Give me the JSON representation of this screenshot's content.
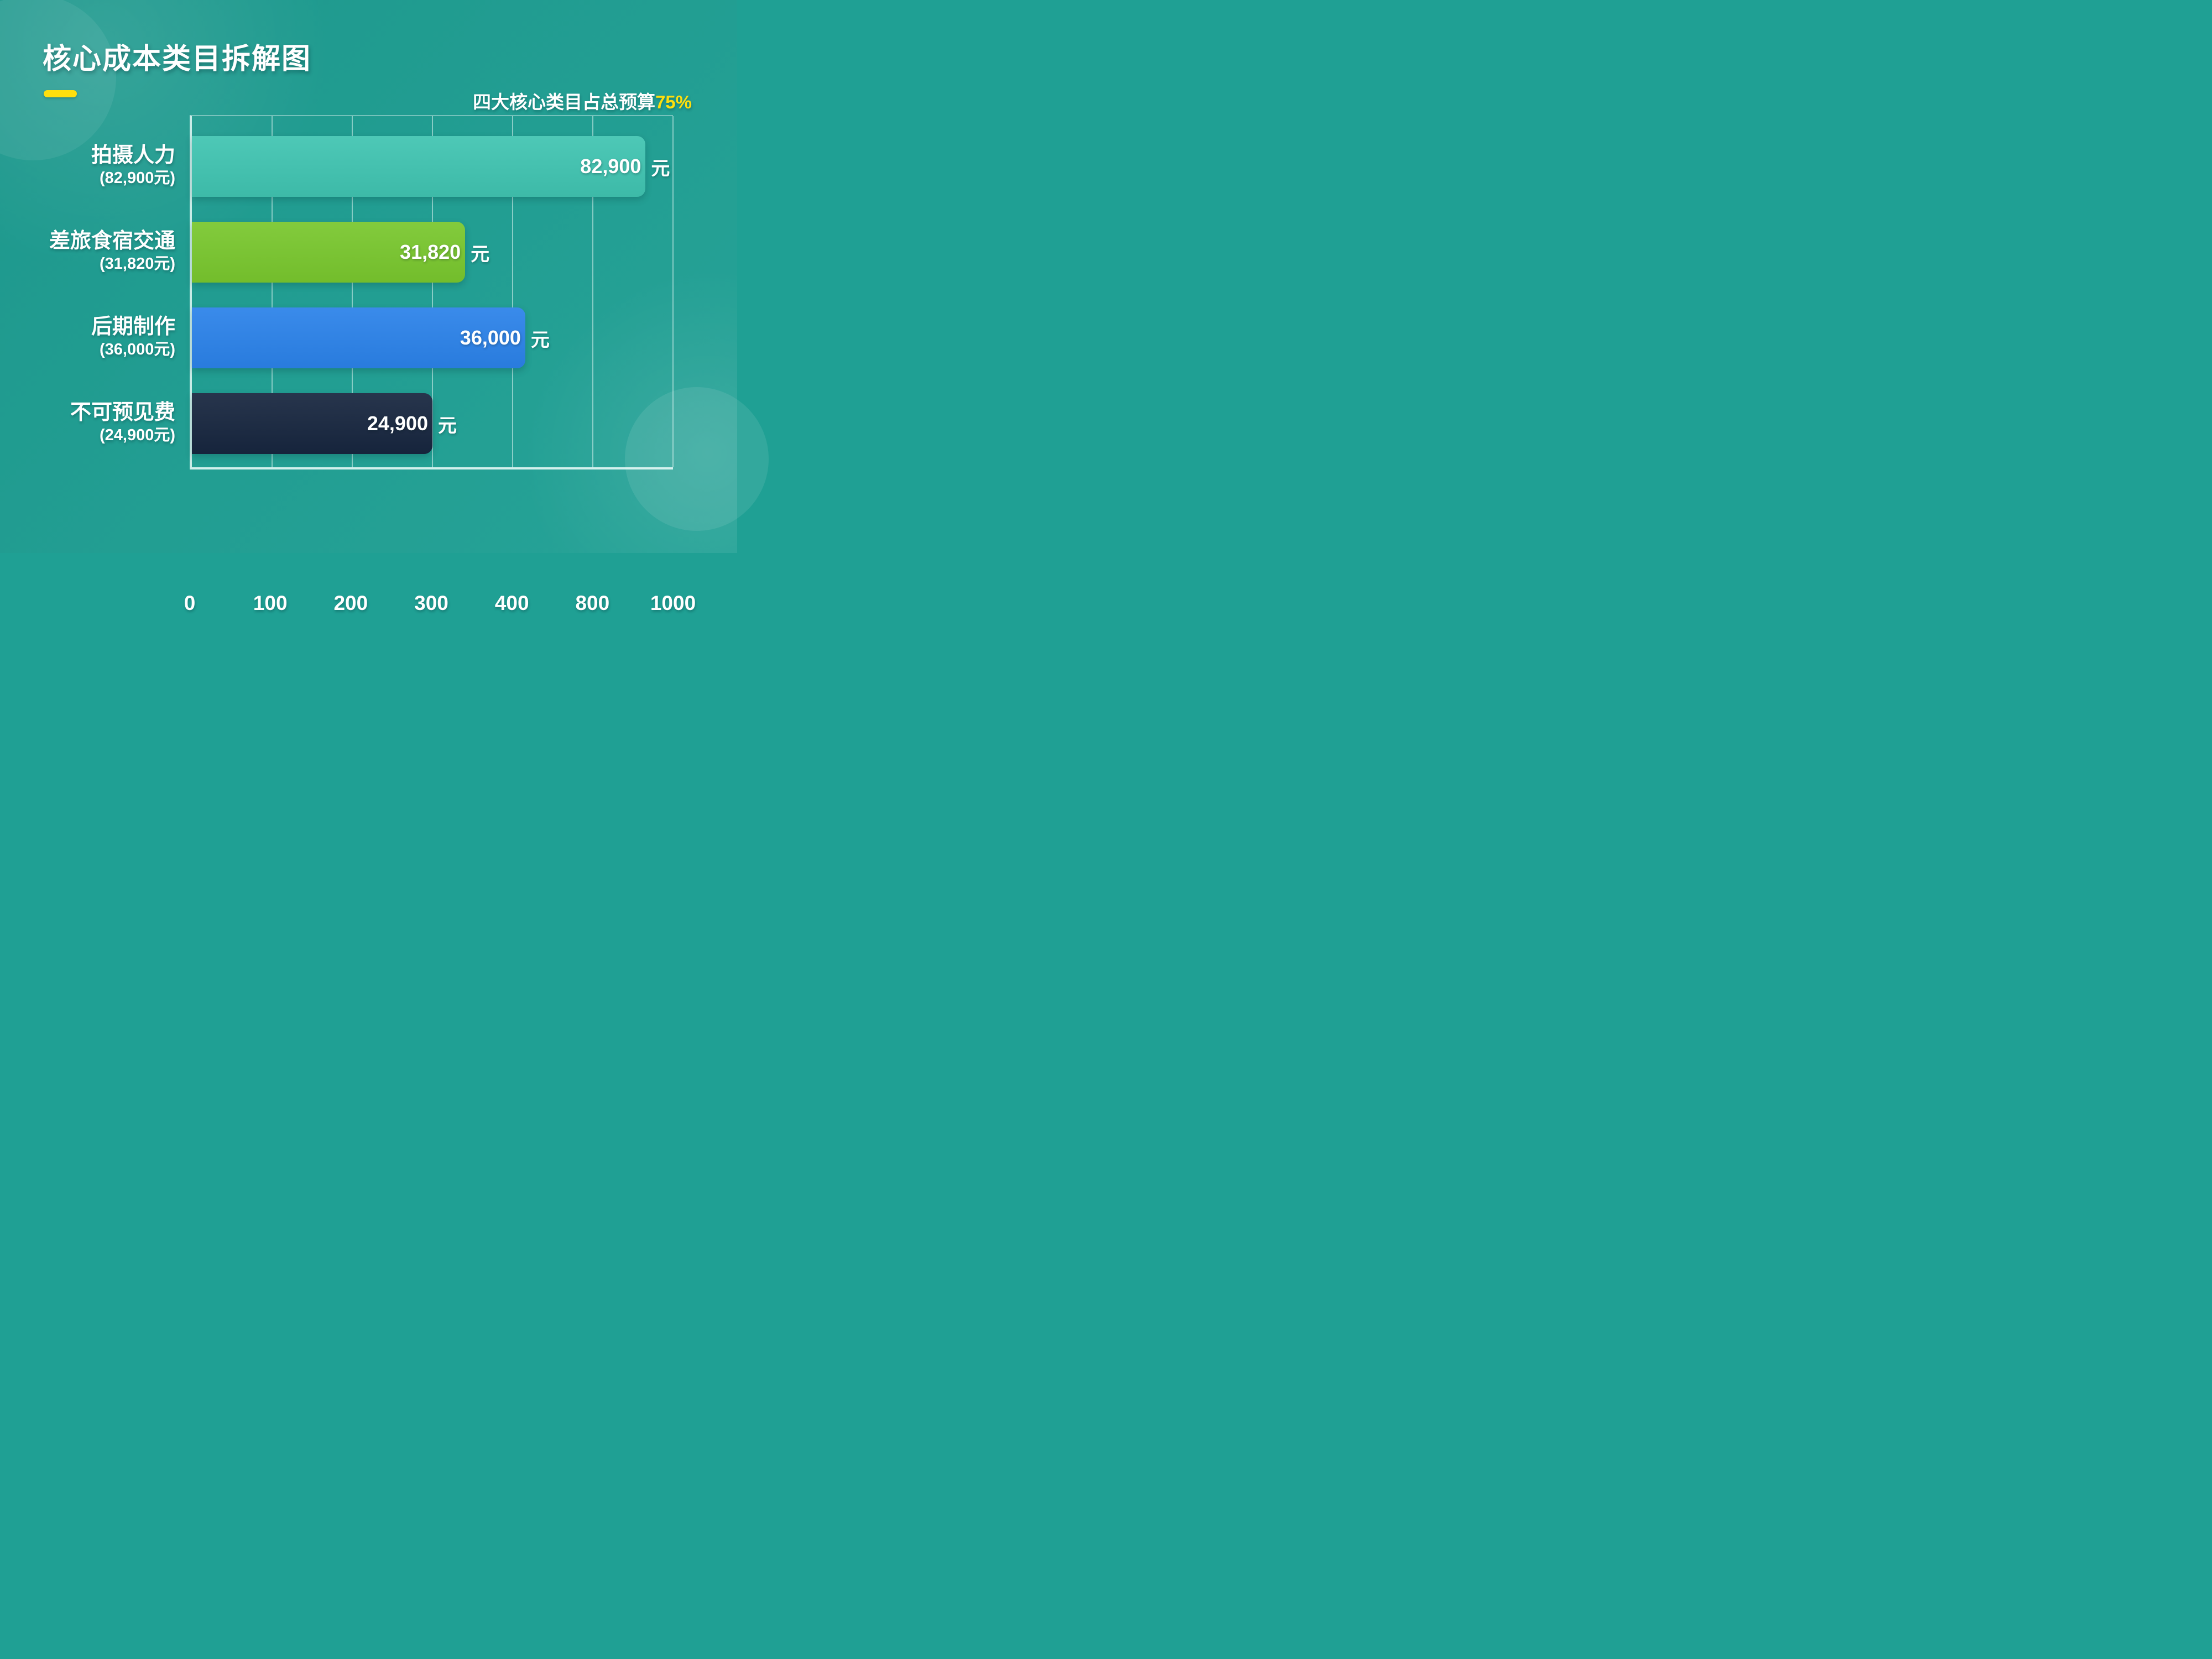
{
  "title": "核心成本类目拆解图",
  "annotation": {
    "prefix": "四大核心类目占总预算",
    "highlight": "75%"
  },
  "colors": {
    "background": "#1FA094",
    "accent_yellow": "#FFDF0D",
    "axis_line": "#D6F3EF",
    "bar_teal": "#40C4B1",
    "bar_green": "#79C72E",
    "bar_blue": "#2B82E9",
    "bar_navy": "#17263F",
    "text_white": "#FFFFFF"
  },
  "chart_data": {
    "type": "bar",
    "orientation": "horizontal",
    "title": "核心成本类目拆解图",
    "grid": true,
    "legend": false,
    "unit": "元",
    "categories": [
      "拍摄人力",
      "差旅食宿交通",
      "后期制作",
      "不可预见费"
    ],
    "category_sublabels": [
      "(82,900元)",
      "(31,820元)",
      "(36,000元)",
      "(24,900元)"
    ],
    "values": [
      82900,
      31820,
      36000,
      24900
    ],
    "value_labels": [
      "82,900",
      "31,820",
      "36,000",
      "24,900"
    ],
    "bar_colors": [
      "#40C4B1",
      "#79C72E",
      "#2B82E9",
      "#17263F"
    ],
    "bar_width_pct": [
      94.3,
      56.8,
      69.3,
      50.0
    ],
    "x_tick_labels": [
      "0",
      "100",
      "200",
      "300",
      "400",
      "800",
      "1000"
    ]
  }
}
